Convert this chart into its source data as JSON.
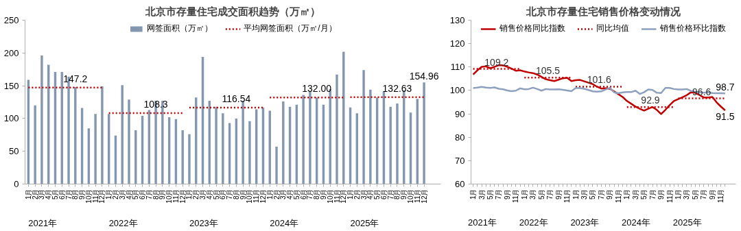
{
  "chart_data": [
    {
      "type": "bar",
      "title": "北京市存量住宅成交面积趋势（万㎡）",
      "legend": "top",
      "grid": false,
      "categories": [
        "1月",
        "2月",
        "3月",
        "4月",
        "5月",
        "6月",
        "7月",
        "8月",
        "9月",
        "10月",
        "11月",
        "12月",
        "1月",
        "2月",
        "3月",
        "4月",
        "5月",
        "6月",
        "7月",
        "8月",
        "9月",
        "10月",
        "11月",
        "12月",
        "1月",
        "2月",
        "3月",
        "4月",
        "5月",
        "6月",
        "7月",
        "8月",
        "9月",
        "10月",
        "11月",
        "12月",
        "1月",
        "2月",
        "3月",
        "4月",
        "5月",
        "6月",
        "7月",
        "8月",
        "9月",
        "10月",
        "11月",
        "12月",
        "1月",
        "2月",
        "3月",
        "4月",
        "5月",
        "6月",
        "7月",
        "8月",
        "9月",
        "10月",
        "11月",
        "12月"
      ],
      "ylim": [
        0,
        250
      ],
      "yticks": [
        0,
        50,
        100,
        150,
        200,
        250
      ],
      "series": [
        {
          "name": "网签面积（万㎡）",
          "color": "#8497b0",
          "values": [
            159,
            120,
            196,
            182,
            171,
            171,
            164,
            148,
            116,
            85,
            107,
            149,
            107,
            74,
            151,
            129,
            82,
            104,
            113,
            127,
            127,
            102,
            99,
            82,
            76,
            132,
            194,
            127,
            118,
            108,
            93,
            100,
            127,
            96,
            114,
            117,
            112,
            57,
            126,
            118,
            121,
            136,
            142,
            132,
            121,
            145,
            167,
            202,
            117,
            108,
            174,
            144,
            132,
            141,
            118,
            123,
            143,
            109,
            130,
            154.96
          ],
          "value_labels": [
            null,
            null,
            null,
            null,
            null,
            null,
            null,
            null,
            null,
            null,
            null,
            null,
            null,
            null,
            null,
            null,
            null,
            null,
            null,
            null,
            null,
            null,
            null,
            null,
            null,
            null,
            null,
            null,
            null,
            null,
            null,
            null,
            null,
            null,
            null,
            null,
            null,
            null,
            null,
            null,
            null,
            null,
            null,
            null,
            null,
            null,
            null,
            null,
            null,
            null,
            null,
            null,
            null,
            null,
            null,
            null,
            null,
            null,
            null,
            "154.96"
          ]
        },
        {
          "name": "平均网签面积（万㎡/月）",
          "type": "step",
          "line_style": "dotted",
          "color": "#c00000",
          "values": [
            147.2,
            147.2,
            147.2,
            147.2,
            147.2,
            147.2,
            147.2,
            147.2,
            147.2,
            147.2,
            147.2,
            147.2,
            108.3,
            108.3,
            108.3,
            108.3,
            108.3,
            108.3,
            108.3,
            108.3,
            108.3,
            108.3,
            108.3,
            108.3,
            116.54,
            116.54,
            116.54,
            116.54,
            116.54,
            116.54,
            116.54,
            116.54,
            116.54,
            116.54,
            116.54,
            116.54,
            132.0,
            132.0,
            132.0,
            132.0,
            132.0,
            132.0,
            132.0,
            132.0,
            132.0,
            132.0,
            132.0,
            132.0,
            132.63,
            132.63,
            132.63,
            132.63,
            132.63,
            132.63,
            132.63,
            132.63,
            132.63,
            132.63,
            132.63,
            132.63
          ]
        }
      ],
      "annotations": [
        {
          "text": "147.2",
          "y": 147.2
        },
        {
          "text": "108.3",
          "y": 108.3
        },
        {
          "text": "116.54",
          "y": 116.54
        },
        {
          "text": "132.00",
          "y": 132.0
        },
        {
          "text": "132.63",
          "y": 132.63
        },
        "2021年",
        "2022年",
        "2023年",
        "2024年",
        "2025年"
      ]
    },
    {
      "type": "line",
      "title": "北京市存量住宅销售价格变动情况",
      "legend": "top",
      "grid": false,
      "categories": [
        "1月",
        null,
        "3月",
        null,
        "5月",
        null,
        "7月",
        null,
        "9月",
        null,
        "11月",
        null,
        "1月",
        null,
        "3月",
        null,
        "5月",
        null,
        "7月",
        null,
        "9月",
        null,
        "11月",
        null,
        "1月",
        null,
        "3月",
        null,
        "5月",
        null,
        "7月",
        null,
        "9月",
        null,
        "11月",
        null,
        "1月",
        null,
        "3月",
        null,
        "5月",
        null,
        "7月",
        null,
        "9月",
        null,
        "11月",
        null,
        "1月",
        null,
        "3月",
        null,
        "5月",
        null,
        "7月",
        null,
        "9月",
        null,
        "11月",
        null
      ],
      "ylim": [
        60,
        130
      ],
      "yticks": [
        60,
        70,
        80,
        90,
        100,
        110,
        120,
        130
      ],
      "series": [
        {
          "name": "销售价格同比指数",
          "color": "#c00000",
          "values": [
            106.8,
            108.6,
            110.1,
            110.3,
            109.5,
            110.1,
            110.8,
            110.7,
            110.1,
            109.3,
            108.4,
            108.6,
            108.1,
            107.7,
            107.4,
            106.8,
            105.8,
            104.8,
            104.4,
            104.0,
            104.6,
            105.2,
            105.4,
            104.0,
            104.4,
            104.5,
            103.9,
            103.3,
            102.7,
            101.6,
            100.8,
            100.9,
            100.7,
            99.6,
            98.4,
            97.2,
            95.5,
            94.3,
            93.1,
            92.2,
            91.4,
            92.2,
            92.9,
            91.7,
            89.9,
            91.7,
            93.7,
            95.5,
            96.3,
            97.1,
            98.0,
            99.2,
            99.0,
            98.0,
            97.0,
            97.0,
            97.2,
            94.9,
            93.1,
            91.5
          ],
          "value_labels": [
            null,
            null,
            null,
            null,
            null,
            null,
            null,
            null,
            null,
            null,
            null,
            null,
            null,
            null,
            null,
            null,
            null,
            null,
            null,
            null,
            null,
            null,
            null,
            null,
            null,
            null,
            null,
            null,
            null,
            null,
            null,
            null,
            null,
            null,
            null,
            null,
            null,
            null,
            null,
            null,
            null,
            null,
            null,
            null,
            null,
            null,
            null,
            null,
            null,
            null,
            null,
            null,
            null,
            null,
            null,
            null,
            null,
            null,
            null,
            "91.5"
          ]
        },
        {
          "name": "同比均值",
          "type": "step",
          "line_style": "dotted",
          "color": "#c00000",
          "values": [
            109.2,
            109.2,
            109.2,
            109.2,
            109.2,
            109.2,
            109.2,
            109.2,
            109.2,
            109.2,
            109.2,
            109.2,
            105.5,
            105.5,
            105.5,
            105.5,
            105.5,
            105.5,
            105.5,
            105.5,
            105.5,
            105.5,
            105.5,
            105.5,
            101.6,
            101.6,
            101.6,
            101.6,
            101.6,
            101.6,
            101.6,
            101.6,
            101.6,
            101.6,
            101.6,
            101.6,
            92.9,
            92.9,
            92.9,
            92.9,
            92.9,
            92.9,
            92.9,
            92.9,
            92.9,
            92.9,
            92.9,
            92.9,
            96.6,
            96.6,
            96.6,
            96.6,
            96.6,
            96.6,
            96.6,
            96.6,
            96.6,
            96.6,
            96.6,
            96.6
          ]
        },
        {
          "name": "销售价格环比指数",
          "color": "#8ea0bf",
          "values": [
            101.0,
            101.2,
            101.5,
            101.2,
            101.1,
            101.3,
            100.7,
            100.5,
            100.0,
            99.7,
            99.9,
            100.9,
            100.5,
            100.6,
            101.2,
            100.6,
            99.9,
            100.6,
            100.4,
            100.4,
            100.5,
            100.3,
            100.0,
            99.7,
            101.0,
            101.0,
            100.7,
            100.2,
            99.6,
            99.5,
            99.6,
            100.4,
            101.1,
            99.2,
            98.8,
            99.2,
            99.3,
            99.3,
            99.9,
            98.5,
            99.2,
            100.4,
            100.2,
            99.0,
            98.9,
            101.1,
            101.1,
            100.6,
            100.4,
            100.4,
            100.6,
            99.8,
            99.5,
            99.2,
            99.0,
            99.2,
            98.9,
            98.8,
            98.8,
            98.7
          ],
          "value_labels": [
            null,
            null,
            null,
            null,
            null,
            null,
            null,
            null,
            null,
            null,
            null,
            null,
            null,
            null,
            null,
            null,
            null,
            null,
            null,
            null,
            null,
            null,
            null,
            null,
            null,
            null,
            null,
            null,
            null,
            null,
            null,
            null,
            null,
            null,
            null,
            null,
            null,
            null,
            null,
            null,
            null,
            null,
            null,
            null,
            null,
            null,
            null,
            null,
            null,
            null,
            null,
            null,
            null,
            null,
            null,
            null,
            null,
            null,
            null,
            "98.7"
          ]
        }
      ],
      "annotations": [
        {
          "text": "109.2",
          "y": 109.2
        },
        {
          "text": "105.5",
          "y": 105.5
        },
        {
          "text": "101.6",
          "y": 101.6
        },
        {
          "text": "92.9",
          "y": 92.9
        },
        {
          "text": "96.6",
          "y": 96.6
        },
        "2021年",
        "2022年",
        "2023年",
        "2024年",
        "2025年"
      ]
    }
  ]
}
